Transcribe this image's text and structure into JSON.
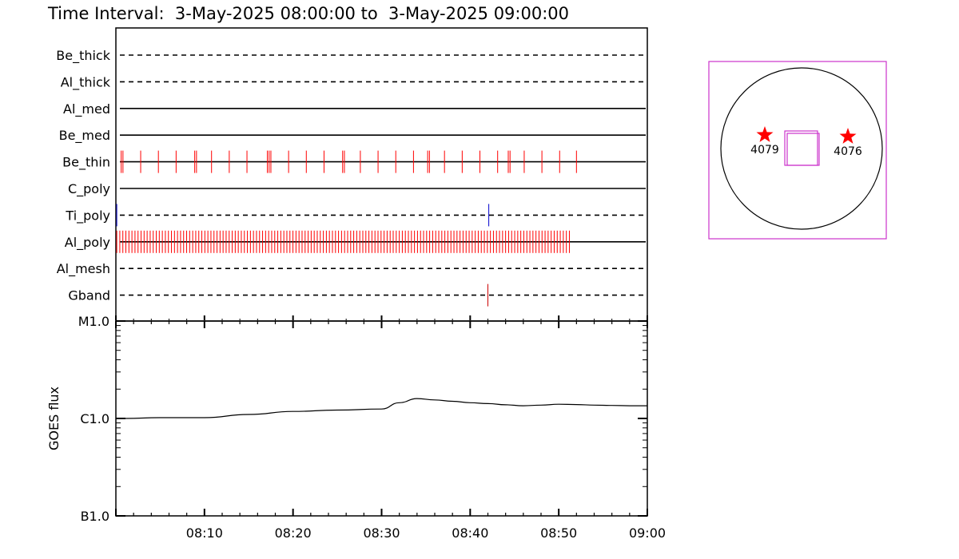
{
  "chart_data": [
    {
      "type": "timeline",
      "title": "Time Interval:  3-May-2025 08:00:00 to  3-May-2025 09:00:00",
      "time_range": [
        "08:00",
        "09:00"
      ],
      "channels": [
        {
          "name": "Be_thick",
          "line_style": "dashed",
          "events": []
        },
        {
          "name": "Al_thick",
          "line_style": "dashed",
          "events": []
        },
        {
          "name": "Al_med",
          "line_style": "solid",
          "events": []
        },
        {
          "name": "Be_med",
          "line_style": "solid",
          "events": []
        },
        {
          "name": "Be_thin",
          "line_style": "solid",
          "event_color": "#ff0000",
          "events": [
            0.6,
            0.8,
            2.8,
            4.8,
            6.8,
            8.9,
            9.1,
            10.8,
            12.8,
            14.8,
            17.1,
            17.3,
            17.5,
            19.5,
            21.5,
            23.5,
            25.6,
            25.8,
            27.6,
            29.6,
            31.6,
            33.6,
            35.2,
            35.4,
            37.1,
            39.1,
            41.1,
            43.1,
            44.3,
            44.5,
            46.1,
            48.1,
            50.1,
            52.0
          ],
          "events_format": "minutes after 08:00"
        },
        {
          "name": "C_poly",
          "line_style": "solid",
          "events": []
        },
        {
          "name": "Ti_poly",
          "line_style": "dashed",
          "event_color": "#0000cc",
          "events": [
            0.1,
            42.1
          ],
          "events_format": "minutes after 08:00"
        },
        {
          "name": "Al_poly",
          "line_style": "solid",
          "event_color": "#ff0000",
          "events_range": [
            0.1,
            51.2
          ],
          "events_count": 150
        },
        {
          "name": "Al_mesh",
          "line_style": "dashed",
          "events": []
        },
        {
          "name": "Gband",
          "line_style": "dashed",
          "event_color": "#cc0000",
          "events": [
            42.0
          ],
          "events_format": "minutes after 08:00"
        }
      ]
    },
    {
      "type": "line",
      "ylabel": "GOES flux",
      "yscale": "log",
      "y_ticks": [
        "M1.0",
        "C1.0",
        "B1.0"
      ],
      "ylim": [
        "B1.0",
        "M1.0"
      ],
      "x_ticks": [
        "08:10",
        "08:20",
        "08:30",
        "08:40",
        "08:50",
        "09:00"
      ],
      "xlim": [
        "08:00",
        "09:00"
      ],
      "series": [
        {
          "x": [
            1,
            5,
            10,
            15,
            20,
            25,
            30,
            32,
            34,
            36,
            38,
            40,
            42,
            44,
            46,
            48,
            50,
            52,
            54,
            56,
            58,
            60
          ],
          "x_format": "minutes after 08:00",
          "y": [
            "C1.0",
            "C1.02",
            "C1.02",
            "C1.1",
            "C1.18",
            "C1.22",
            "C1.25",
            "C1.45",
            "C1.6",
            "C1.55",
            "C1.5",
            "C1.45",
            "C1.42",
            "C1.38",
            "C1.35",
            "C1.37",
            "C1.4",
            "C1.39",
            "C1.37",
            "C1.36",
            "C1.35",
            "C1.35"
          ],
          "color": "#000000"
        }
      ]
    },
    {
      "type": "diagram",
      "markers": [
        {
          "label": "4079",
          "color": "#ff0000"
        },
        {
          "label": "4076",
          "color": "#ff0000"
        }
      ],
      "frame_color": "#cc33cc"
    }
  ]
}
